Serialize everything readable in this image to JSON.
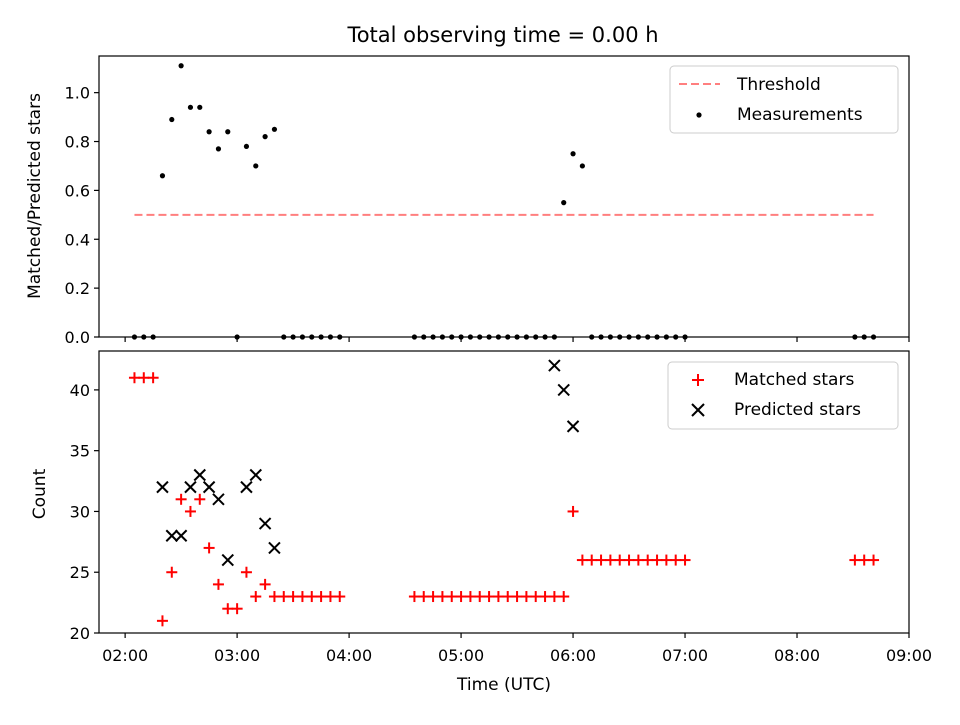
{
  "title": "Total observing time = 0.00 h",
  "top_panel": {
    "ylabel": "Matched/Predicted stars",
    "ylim": [
      0,
      1.15
    ],
    "yticks": [
      "0.0",
      "0.2",
      "0.4",
      "0.6",
      "0.8",
      "1.0"
    ],
    "legend": {
      "threshold": "Threshold",
      "measurements": "Measurements"
    }
  },
  "bottom_panel": {
    "ylabel": "Count",
    "xlabel": "Time (UTC)",
    "ylim": [
      20,
      43.2
    ],
    "yticks": [
      "20",
      "25",
      "30",
      "35",
      "40"
    ],
    "xticks": [
      "02:00",
      "03:00",
      "04:00",
      "05:00",
      "06:00",
      "07:00",
      "08:00",
      "09:00"
    ],
    "legend": {
      "matched": "Matched stars",
      "predicted": "Predicted stars"
    }
  },
  "chart_data": [
    {
      "type": "scatter",
      "title": "Total observing time = 0.00 h",
      "xlabel": "",
      "ylabel": "Matched/Predicted stars",
      "xlim": [
        "01:46",
        "09:00"
      ],
      "ylim": [
        0,
        1.15
      ],
      "legend_position": "top-right",
      "threshold": {
        "name": "Threshold",
        "value": 0.5,
        "x_range": [
          "02:05",
          "08:41"
        ],
        "color": "#ff7f7f",
        "style": "dashed"
      },
      "series": [
        {
          "name": "Measurements",
          "color": "#000000",
          "marker": "dot",
          "x": [
            "02:05",
            "02:10",
            "02:15",
            "02:20",
            "02:25",
            "02:30",
            "02:35",
            "02:40",
            "02:45",
            "02:50",
            "02:55",
            "03:00",
            "03:05",
            "03:10",
            "03:15",
            "03:20",
            "03:25",
            "03:30",
            "03:35",
            "03:40",
            "03:45",
            "03:50",
            "03:55",
            "04:35",
            "04:40",
            "04:45",
            "04:50",
            "04:55",
            "05:00",
            "05:05",
            "05:10",
            "05:15",
            "05:20",
            "05:25",
            "05:30",
            "05:35",
            "05:40",
            "05:45",
            "05:50",
            "05:55",
            "06:00",
            "06:05",
            "06:10",
            "06:15",
            "06:20",
            "06:25",
            "06:30",
            "06:35",
            "06:40",
            "06:45",
            "06:50",
            "06:55",
            "07:00",
            "08:31",
            "08:36",
            "08:41"
          ],
          "y": [
            0,
            0,
            0,
            0.66,
            0.89,
            1.11,
            0.94,
            0.94,
            0.84,
            0.77,
            0.84,
            0,
            0.78,
            0.7,
            0.82,
            0.85,
            0,
            0,
            0,
            0,
            0,
            0,
            0,
            0,
            0,
            0,
            0,
            0,
            0,
            0,
            0,
            0,
            0,
            0,
            0,
            0,
            0,
            0,
            0,
            0.55,
            0.75,
            0.7,
            0,
            0,
            0,
            0,
            0,
            0,
            0,
            0,
            0,
            0,
            0,
            0,
            0,
            0
          ]
        }
      ]
    },
    {
      "type": "scatter",
      "title": "",
      "xlabel": "Time (UTC)",
      "ylabel": "Count",
      "xlim": [
        "01:46",
        "09:00"
      ],
      "ylim": [
        20,
        43.2
      ],
      "legend_position": "top-right",
      "series": [
        {
          "name": "Matched stars",
          "color": "#ff0000",
          "marker": "plus",
          "x": [
            "02:05",
            "02:10",
            "02:15",
            "02:20",
            "02:25",
            "02:30",
            "02:35",
            "02:40",
            "02:45",
            "02:50",
            "02:55",
            "03:00",
            "03:05",
            "03:10",
            "03:15",
            "03:20",
            "03:25",
            "03:30",
            "03:35",
            "03:40",
            "03:45",
            "03:50",
            "03:55",
            "04:35",
            "04:40",
            "04:45",
            "04:50",
            "04:55",
            "05:00",
            "05:05",
            "05:10",
            "05:15",
            "05:20",
            "05:25",
            "05:30",
            "05:35",
            "05:40",
            "05:45",
            "05:50",
            "05:55",
            "06:00",
            "06:05",
            "06:10",
            "06:15",
            "06:20",
            "06:25",
            "06:30",
            "06:35",
            "06:40",
            "06:45",
            "06:50",
            "06:55",
            "07:00",
            "08:31",
            "08:36",
            "08:41"
          ],
          "y": [
            41,
            41,
            41,
            21,
            25,
            31,
            30,
            31,
            27,
            24,
            22,
            22,
            25,
            23,
            24,
            23,
            23,
            23,
            23,
            23,
            23,
            23,
            23,
            23,
            23,
            23,
            23,
            23,
            23,
            23,
            23,
            23,
            23,
            23,
            23,
            23,
            23,
            23,
            23,
            23,
            30,
            26,
            26,
            26,
            26,
            26,
            26,
            26,
            26,
            26,
            26,
            26,
            26,
            26,
            26,
            26
          ]
        },
        {
          "name": "Predicted stars",
          "color": "#000000",
          "marker": "x",
          "x": [
            "02:20",
            "02:25",
            "02:30",
            "02:35",
            "02:40",
            "02:45",
            "02:50",
            "02:55",
            "03:05",
            "03:10",
            "03:15",
            "03:20",
            "05:50",
            "05:55",
            "06:00"
          ],
          "y": [
            32,
            28,
            28,
            32,
            33,
            32,
            31,
            26,
            32,
            33,
            29,
            27,
            42,
            40,
            37
          ]
        }
      ]
    }
  ]
}
